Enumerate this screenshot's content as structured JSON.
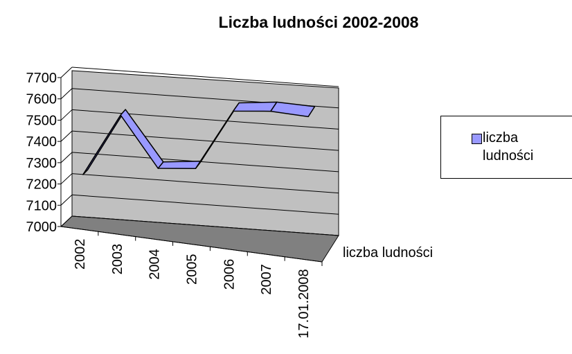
{
  "chart_data": {
    "type": "line3d",
    "title": "Liczba ludności 2002-2008",
    "categories": [
      "2002",
      "2003",
      "2004",
      "2005",
      "2006",
      "2007",
      "17.01.2008"
    ],
    "series": [
      {
        "name": "liczba ludności",
        "color": "#9999ff",
        "values": [
          7240,
          7540,
          7310,
          7330,
          7620,
          7640,
          7635
        ]
      }
    ],
    "ylim": [
      7000,
      7700
    ],
    "yticks": [
      7000,
      7100,
      7200,
      7300,
      7400,
      7500,
      7600,
      7700
    ],
    "grid": true,
    "legend": "right"
  }
}
